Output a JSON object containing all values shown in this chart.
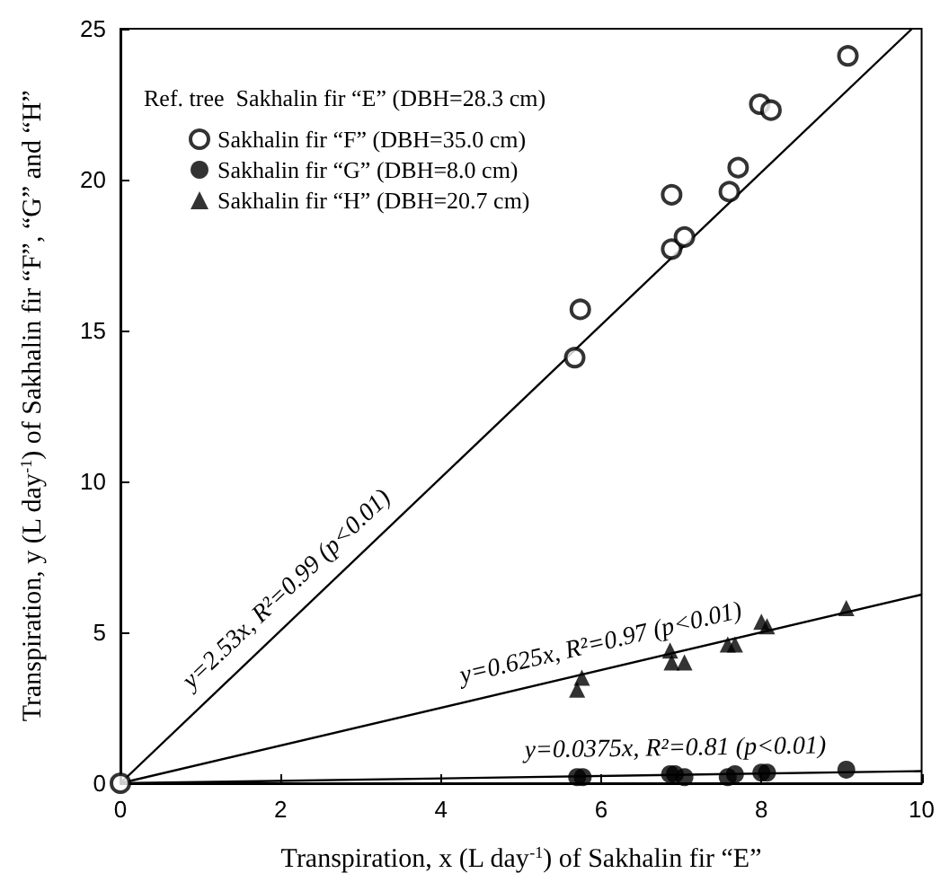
{
  "chart_data": {
    "type": "scatter",
    "xlabel": "Transpiration, x (L day$^{-1}$) of Sakhalin fir “E”",
    "ylabel": "Transpiration, y (L day$^{-1}$) of Sakhalin fir “F”, “G” and “H”",
    "legend_title": "Ref. tree  Sakhalin fir “E” (DBH=28.3 cm)",
    "legend": "top left",
    "grid": false,
    "xlim": [
      0,
      10
    ],
    "xticks": [
      0,
      2,
      4,
      6,
      8,
      10
    ],
    "ylim": [
      0,
      25
    ],
    "yticks": [
      0,
      5,
      10,
      15,
      20,
      25
    ],
    "series": [
      {
        "name": "Sakhalin fir “F” (DBH=35.0 cm)",
        "color": "#000000",
        "marker": "open circle",
        "x": [
          0,
          5.67,
          5.74,
          6.88,
          6.88,
          7.04,
          7.6,
          7.71,
          7.98,
          8.12,
          9.08
        ],
        "values": [
          0,
          14.1,
          15.7,
          19.5,
          17.7,
          18.1,
          19.6,
          20.4,
          22.5,
          22.3,
          24.1
        ]
      },
      {
        "name": "Sakhalin fir “G” (DBH=8.0 cm)",
        "color": "#000000",
        "marker": "circle",
        "x": [
          5.7,
          5.77,
          6.86,
          6.92,
          7.04,
          7.58,
          7.67,
          8.0,
          8.07,
          9.06
        ],
        "values": [
          0.2,
          0.2,
          0.3,
          0.3,
          0.2,
          0.2,
          0.3,
          0.35,
          0.35,
          0.45
        ]
      },
      {
        "name": "Sakhalin fir “H” (DBH=20.7 cm)",
        "color": "#000000",
        "marker": "triangle",
        "x": [
          5.7,
          5.76,
          6.86,
          6.88,
          7.04,
          7.58,
          7.67,
          8.0,
          8.07,
          9.06
        ],
        "values": [
          3.1,
          3.5,
          4.4,
          4.0,
          4.0,
          4.6,
          4.6,
          5.35,
          5.2,
          5.8
        ]
      },
      {
        "type": "line",
        "color": "#000000",
        "marker": "none",
        "x": [
          0,
          9.88
        ],
        "values": [
          0,
          25
        ]
      },
      {
        "type": "line",
        "color": "#000000",
        "marker": "none",
        "x": [
          0,
          10
        ],
        "values": [
          0,
          0.4
        ]
      },
      {
        "type": "line",
        "color": "#000000",
        "marker": "none",
        "x": [
          0,
          10
        ],
        "values": [
          0,
          6.25
        ]
      }
    ],
    "annotations": [
      {
        "text": "y=2.53x, R²=0.99 (p<0.01)",
        "x": 2.3,
        "y": 5.8
      },
      {
        "text": "y=0.625x, R²=0.97 (p<0.01)",
        "x": 6.07,
        "y": 3.8
      },
      {
        "text": "y=0.0375x, R²=0.81 (p<0.01)",
        "x": 6.93,
        "y": 0.3
      }
    ]
  }
}
